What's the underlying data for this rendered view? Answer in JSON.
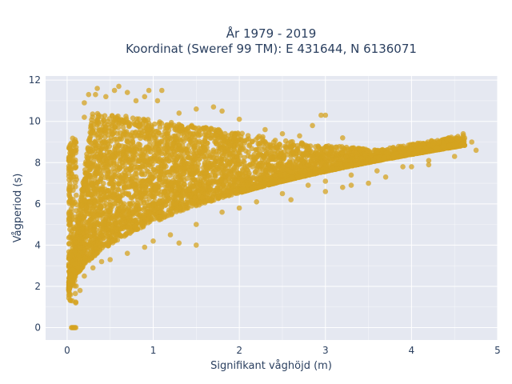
{
  "chart_data": {
    "type": "scatter",
    "title": "År 1979 - 2019",
    "subtitle": "Koordinat (Sweref 99 TM): E 431644, N 6136071",
    "xlabel": "Signifikant våghöjd (m)",
    "ylabel": "Vågperiod (s)",
    "xlim": [
      -0.25,
      5
    ],
    "ylim": [
      -0.6,
      12.2
    ],
    "x_ticks": [
      0,
      1,
      2,
      3,
      4,
      5
    ],
    "y_ticks": [
      0,
      2,
      4,
      6,
      8,
      10,
      12
    ],
    "grid": true,
    "legend": "none",
    "marker_color": "#d4a320",
    "plot_background": "#e5e8f1",
    "series": [
      {
        "values_note": "approximate sample of the dense point cloud",
        "points": [
          [
            0.05,
            0
          ],
          [
            0.06,
            0
          ],
          [
            0.07,
            0
          ],
          [
            0.08,
            0
          ],
          [
            0.09,
            0
          ],
          [
            0.1,
            0
          ],
          [
            0.04,
            5.0
          ],
          [
            0.03,
            4.4
          ],
          [
            0.05,
            8.5
          ],
          [
            0.03,
            8.7
          ],
          [
            0.04,
            1.6
          ],
          [
            0.06,
            1.3
          ],
          [
            0.1,
            1.2
          ],
          [
            0.15,
            1.8
          ],
          [
            0.2,
            2.5
          ],
          [
            0.3,
            2.9
          ],
          [
            0.4,
            3.2
          ],
          [
            0.5,
            3.3
          ],
          [
            0.7,
            3.6
          ],
          [
            0.9,
            3.9
          ],
          [
            1.0,
            4.2
          ],
          [
            1.2,
            4.5
          ],
          [
            1.5,
            5.0
          ],
          [
            1.8,
            5.6
          ],
          [
            2.0,
            5.8
          ],
          [
            2.2,
            6.1
          ],
          [
            2.5,
            6.5
          ],
          [
            2.8,
            6.9
          ],
          [
            3.0,
            7.1
          ],
          [
            3.3,
            7.4
          ],
          [
            3.6,
            7.6
          ],
          [
            3.9,
            7.8
          ],
          [
            4.2,
            8.1
          ],
          [
            4.5,
            8.3
          ],
          [
            0.1,
            9.0
          ],
          [
            0.2,
            10.2
          ],
          [
            0.2,
            10.9
          ],
          [
            0.25,
            11.3
          ],
          [
            0.33,
            11.3
          ],
          [
            0.35,
            11.6
          ],
          [
            0.45,
            11.2
          ],
          [
            0.55,
            11.5
          ],
          [
            0.6,
            11.7
          ],
          [
            0.7,
            11.4
          ],
          [
            0.8,
            11.0
          ],
          [
            0.9,
            11.2
          ],
          [
            0.95,
            11.5
          ],
          [
            1.1,
            11.5
          ],
          [
            1.05,
            11.0
          ],
          [
            1.3,
            10.4
          ],
          [
            1.5,
            10.6
          ],
          [
            1.7,
            10.7
          ],
          [
            1.8,
            10.5
          ],
          [
            2.0,
            10.1
          ],
          [
            2.3,
            9.6
          ],
          [
            2.5,
            9.4
          ],
          [
            2.7,
            9.3
          ],
          [
            2.85,
            9.8
          ],
          [
            2.95,
            10.3
          ],
          [
            3.0,
            10.3
          ],
          [
            3.2,
            9.2
          ],
          [
            3.4,
            8.6
          ],
          [
            3.6,
            8.5
          ],
          [
            3.9,
            8.7
          ],
          [
            4.1,
            8.8
          ],
          [
            4.3,
            8.7
          ],
          [
            4.38,
            8.8
          ],
          [
            4.44,
            8.8
          ],
          [
            4.6,
            9.4
          ],
          [
            4.7,
            9.0
          ],
          [
            4.75,
            8.6
          ],
          [
            3.3,
            6.9
          ],
          [
            3.5,
            7.0
          ],
          [
            3.7,
            7.3
          ],
          [
            4.0,
            7.8
          ],
          [
            4.2,
            7.9
          ],
          [
            3.2,
            6.8
          ],
          [
            3.0,
            6.6
          ],
          [
            2.6,
            6.2
          ],
          [
            2.8,
            7.9
          ],
          [
            2.6,
            8.3
          ],
          [
            2.4,
            9.0
          ],
          [
            1.5,
            4.0
          ],
          [
            1.3,
            4.1
          ],
          [
            1.55,
            9.6
          ],
          [
            1.0,
            5.5
          ],
          [
            0.5,
            7.0
          ],
          [
            0.8,
            6.5
          ],
          [
            0.3,
            5.5
          ],
          [
            0.6,
            8.5
          ],
          [
            1.2,
            7.0
          ],
          [
            1.8,
            7.5
          ],
          [
            2.2,
            7.2
          ],
          [
            2.7,
            7.6
          ]
        ]
      }
    ]
  }
}
